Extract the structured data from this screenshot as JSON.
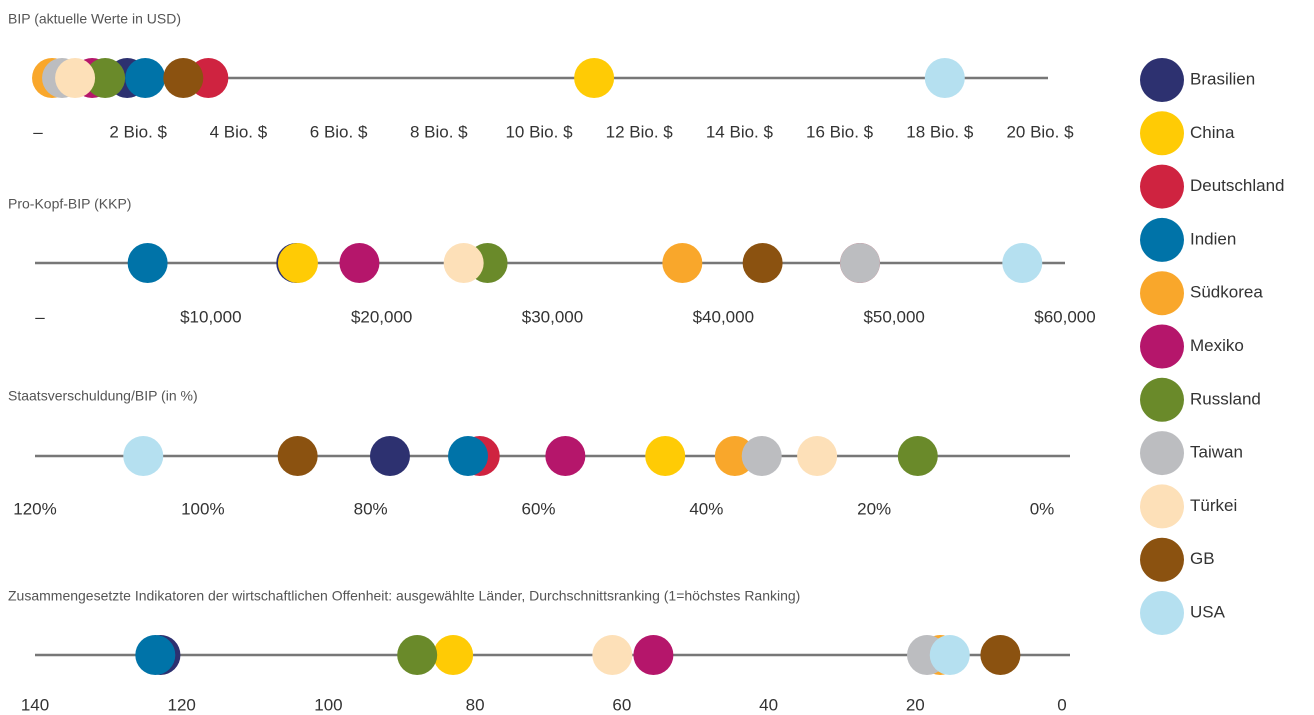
{
  "legend": [
    {
      "name": "Brasilien",
      "color": "#2d3170"
    },
    {
      "name": "China",
      "color": "#ffcb05"
    },
    {
      "name": "Deutschland",
      "color": "#cf2340"
    },
    {
      "name": "Indien",
      "color": "#0073a8"
    },
    {
      "name": "Südkorea",
      "color": "#f9a72b"
    },
    {
      "name": "Mexiko",
      "color": "#b5166b"
    },
    {
      "name": "Russland",
      "color": "#6a8a2a"
    },
    {
      "name": "Taiwan",
      "color": "#bcbdc0"
    },
    {
      "name": "Türkei",
      "color": "#fde0b8"
    },
    {
      "name": "GB",
      "color": "#8b5210"
    },
    {
      "name": "USA",
      "color": "#b5e0f0"
    }
  ],
  "chart_data": [
    {
      "type": "dot",
      "title": "BIP (aktuelle Werte in USD)",
      "values": [
        1.78,
        11.1,
        3.4,
        2.14,
        0.28,
        1.08,
        1.34,
        0.48,
        0.74,
        2.9,
        18.1
      ],
      "xlim": [
        0,
        20
      ],
      "xticks": [
        {
          "value": 0,
          "label": "–"
        },
        {
          "value": 2,
          "label": "2 Bio. $"
        },
        {
          "value": 4,
          "label": "4 Bio. $"
        },
        {
          "value": 6,
          "label": "6 Bio. $"
        },
        {
          "value": 8,
          "label": "8 Bio. $"
        },
        {
          "value": 10,
          "label": "10 Bio. $"
        },
        {
          "value": 12,
          "label": "12 Bio. $"
        },
        {
          "value": 14,
          "label": "14 Bio. $"
        },
        {
          "value": 16,
          "label": "16 Bio. $"
        },
        {
          "value": 18,
          "label": "18 Bio. $"
        },
        {
          "value": 20,
          "label": "20 Bio. $"
        }
      ]
    },
    {
      "type": "dot",
      "title": "Pro-Kopf-BIP (KKP)",
      "values": [
        15000,
        15100,
        48000,
        6300,
        37600,
        18700,
        26200,
        48000,
        24800,
        42300,
        57500
      ],
      "xlim": [
        0,
        60000
      ],
      "xticks": [
        {
          "value": 0,
          "label": "–"
        },
        {
          "value": 10000,
          "label": "$10,000"
        },
        {
          "value": 20000,
          "label": "$20,000"
        },
        {
          "value": 30000,
          "label": "$30,000"
        },
        {
          "value": 40000,
          "label": "$40,000"
        },
        {
          "value": 50000,
          "label": "$50,000"
        },
        {
          "value": 60000,
          "label": "$60,000"
        }
      ]
    },
    {
      "type": "dot",
      "title": "Staatsverschuldung/BIP (in %)",
      "values": [
        77.7,
        44.9,
        67.0,
        68.4,
        36.6,
        56.8,
        14.8,
        33.4,
        26.8,
        88.7,
        107.1
      ],
      "xlim": [
        120,
        0
      ],
      "xticks": [
        {
          "value": 120,
          "label": "120%"
        },
        {
          "value": 100,
          "label": "100%"
        },
        {
          "value": 80,
          "label": "80%"
        },
        {
          "value": 60,
          "label": "60%"
        },
        {
          "value": 40,
          "label": "40%"
        },
        {
          "value": 20,
          "label": "20%"
        },
        {
          "value": 0,
          "label": "0%"
        }
      ]
    },
    {
      "type": "dot",
      "title": "Zusammengesetzte Indikatoren der wirtschaftlichen Offenheit: ausgewählte Länder, Durchschnittsranking (1=höchstes Ranking)",
      "values": [
        122.9,
        83.0,
        null,
        123.6,
        16.6,
        55.7,
        87.9,
        18.4,
        61.3,
        8.4,
        15.3
      ],
      "xlim": [
        140,
        0
      ],
      "xticks": [
        140,
        120,
        100,
        80,
        60,
        40,
        20,
        0
      ]
    }
  ]
}
